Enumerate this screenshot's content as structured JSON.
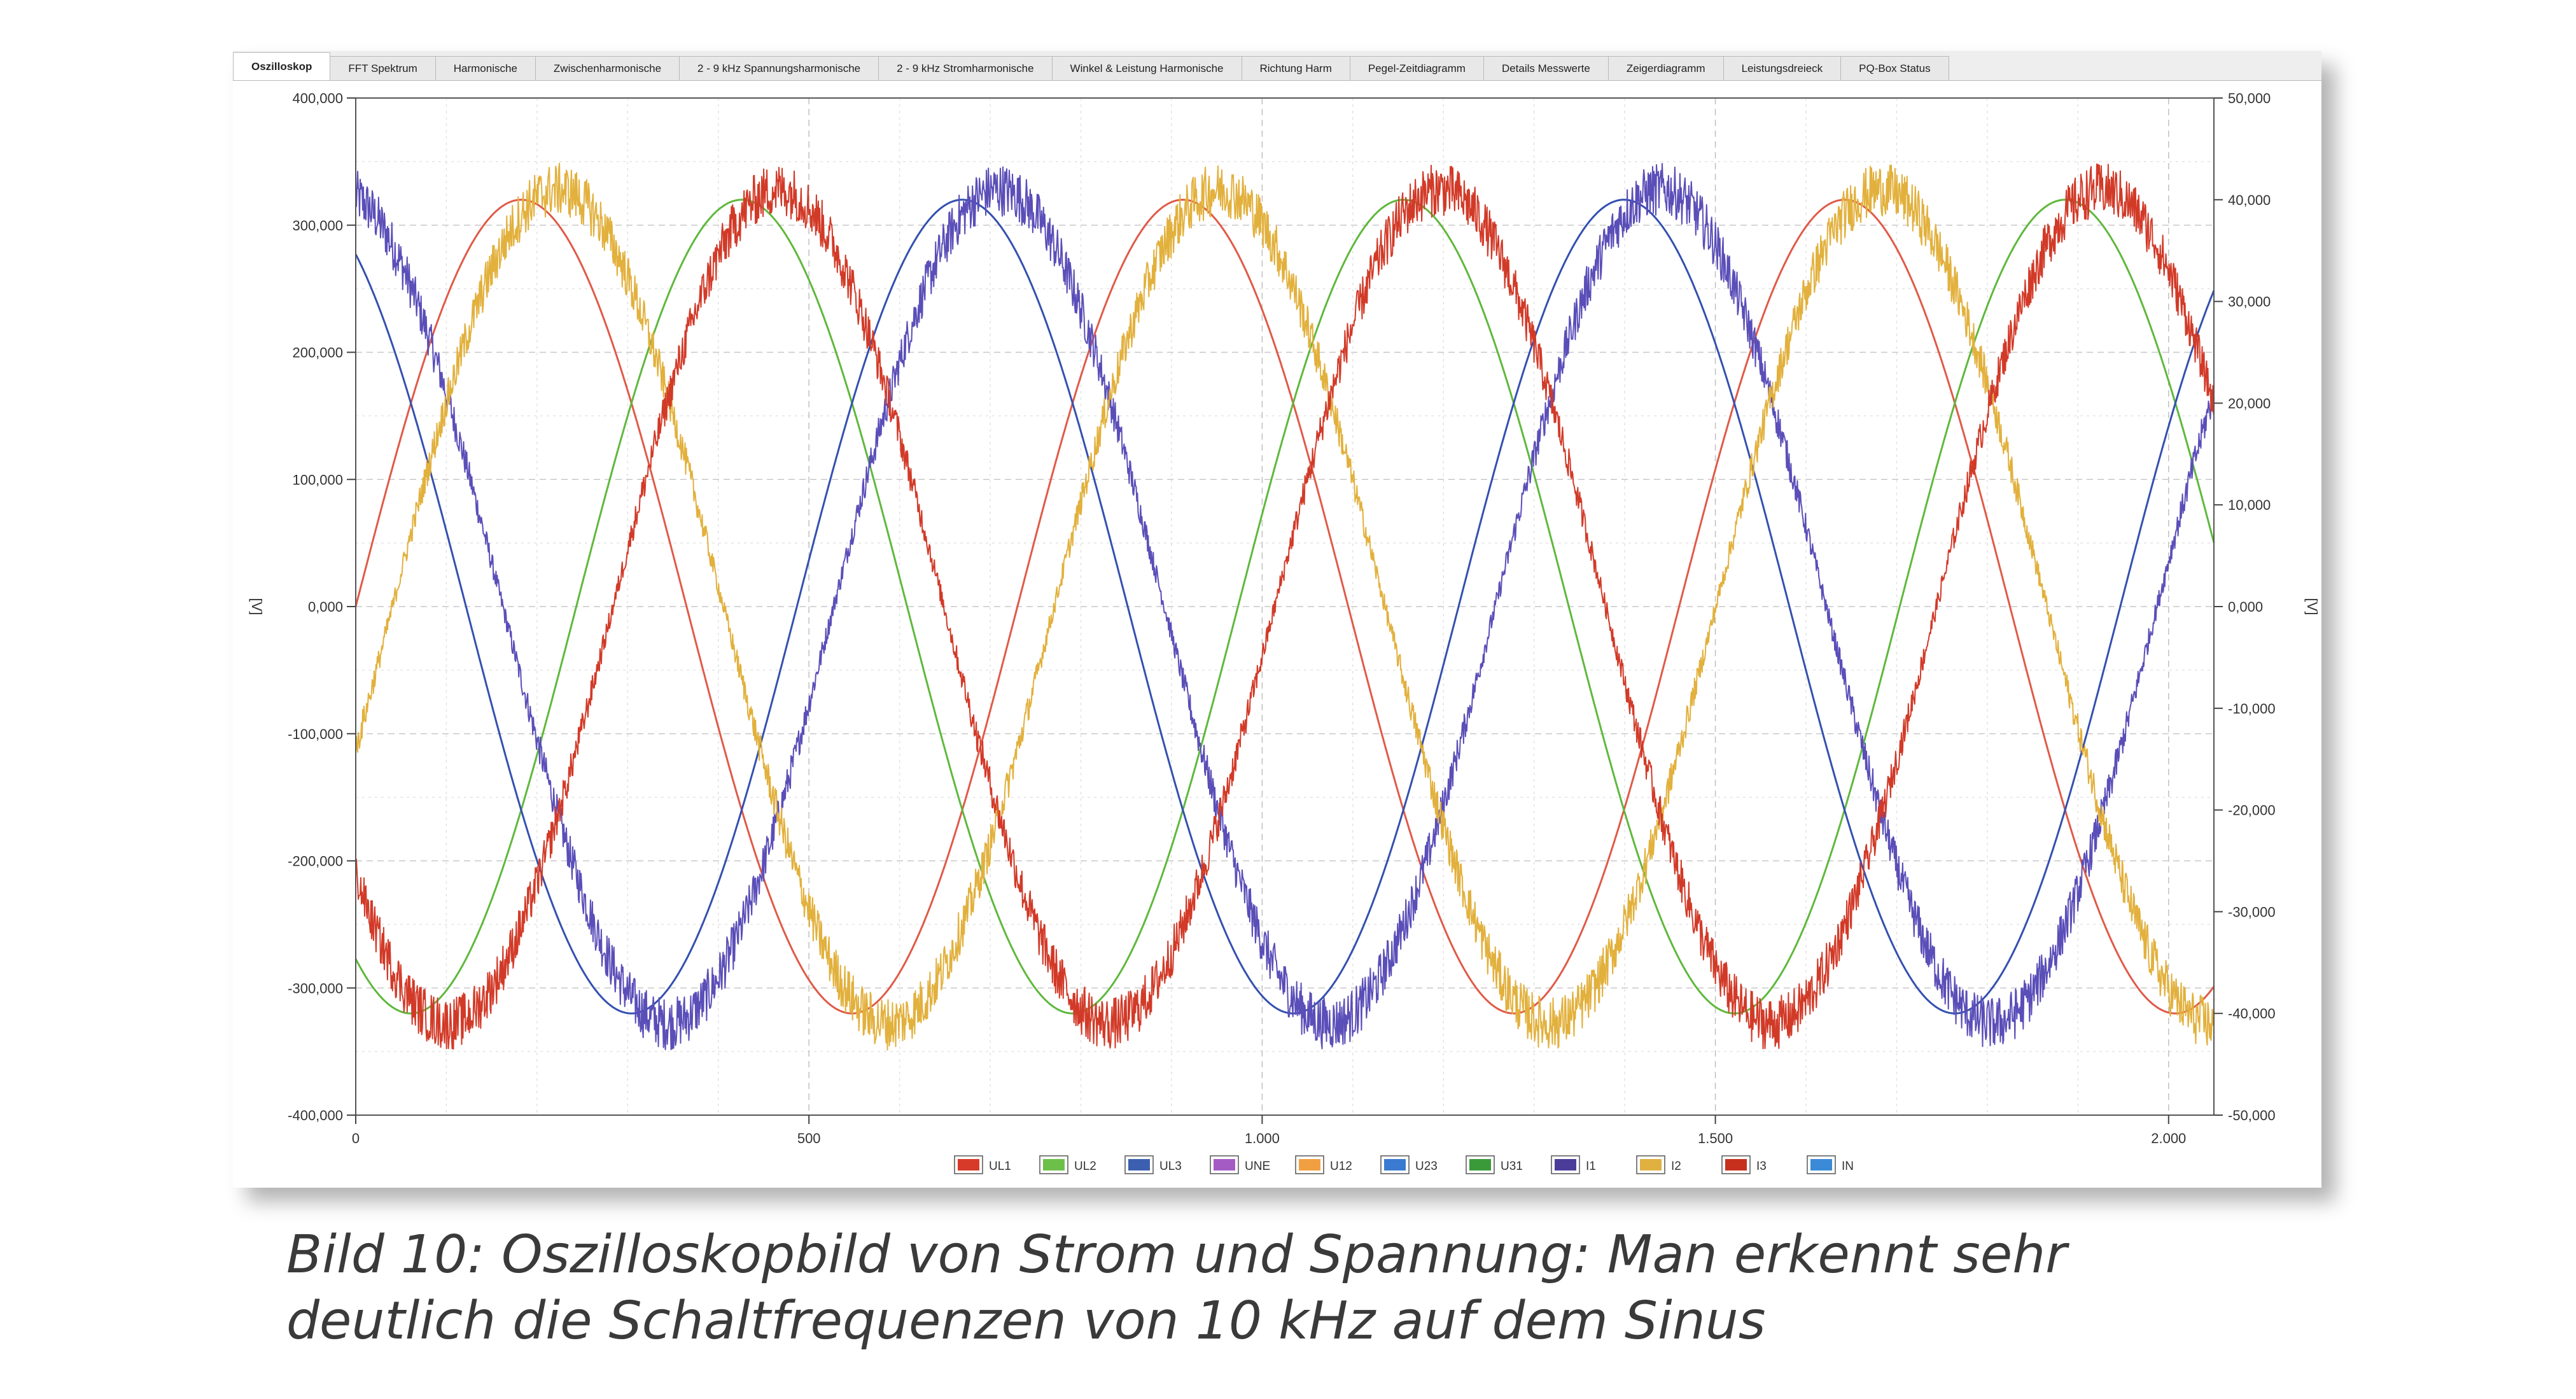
{
  "window": {
    "tabs": [
      {
        "label": "Oszilloskop",
        "active": true
      },
      {
        "label": "FFT Spektrum"
      },
      {
        "label": "Harmonische"
      },
      {
        "label": "Zwischenharmonische"
      },
      {
        "label": "2 - 9 kHz Spannungsharmonische"
      },
      {
        "label": "2 - 9 kHz Stromharmonische"
      },
      {
        "label": "Winkel & Leistung Harmonische"
      },
      {
        "label": "Richtung Harm"
      },
      {
        "label": "Pegel-Zeitdiagramm"
      },
      {
        "label": "Details Messwerte"
      },
      {
        "label": "Zeigerdiagramm"
      },
      {
        "label": "Leistungsdreieck"
      },
      {
        "label": "PQ-Box Status"
      }
    ]
  },
  "chart_data": {
    "type": "line",
    "x_range": [
      0,
      2050
    ],
    "x_ticks": [
      0,
      500,
      1000,
      1500,
      2000
    ],
    "x_tick_labels": [
      "0",
      "500",
      "1.000",
      "1.500",
      "2.000"
    ],
    "y_left_range": [
      -400000,
      400000
    ],
    "y_left_ticks": [
      400000,
      300000,
      200000,
      100000,
      0,
      -100000,
      -200000,
      -300000,
      -400000
    ],
    "y_left_tick_labels": [
      "400,000",
      "300,000",
      "200,000",
      "100,000",
      "0,000",
      "-100,000",
      "-200,000",
      "-300,000",
      "-400,000"
    ],
    "y_left_label": "[V]",
    "y_right_range": [
      -50000,
      50000
    ],
    "y_right_ticks": [
      50000,
      40000,
      30000,
      20000,
      10000,
      0,
      -10000,
      -20000,
      -30000,
      -40000,
      -50000
    ],
    "y_right_tick_labels": [
      "50,000",
      "40,000",
      "30,000",
      "20,000",
      "10,000",
      "0,000",
      "-10,000",
      "-20,000",
      "-30,000",
      "-40,000",
      "-50,000"
    ],
    "y_right_label": "[V]",
    "grid": true,
    "legend_position": "bottom",
    "legend": [
      {
        "name": "UL1",
        "color": "#d83a2a"
      },
      {
        "name": "UL2",
        "color": "#6cc04a"
      },
      {
        "name": "UL3",
        "color": "#3c5fb0"
      },
      {
        "name": "UNE",
        "color": "#a45cc4"
      },
      {
        "name": "U12",
        "color": "#f0a040"
      },
      {
        "name": "U23",
        "color": "#3a7ad0"
      },
      {
        "name": "U31",
        "color": "#3a9a3a"
      },
      {
        "name": "I1",
        "color": "#4b3c9a"
      },
      {
        "name": "I2",
        "color": "#e0b040"
      },
      {
        "name": "I3",
        "color": "#c8301e"
      },
      {
        "name": "IN",
        "color": "#3a8ad8"
      }
    ],
    "series": [
      {
        "name": "UL1",
        "axis": "left",
        "color": "#e05a48",
        "width": 3,
        "amplitude": 320000,
        "period": 730,
        "phase_deg": 0,
        "noise": 0
      },
      {
        "name": "UL2",
        "axis": "left",
        "color": "#5fb83c",
        "width": 3,
        "amplitude": 320000,
        "period": 730,
        "phase_deg": -120,
        "noise": 0
      },
      {
        "name": "UL3",
        "axis": "left",
        "color": "#3450b0",
        "width": 3,
        "amplitude": 320000,
        "period": 730,
        "phase_deg": 120,
        "noise": 0
      },
      {
        "name": "I1",
        "axis": "right",
        "color": "#5a4eb8",
        "width": 2,
        "amplitude": 41000,
        "period": 730,
        "phase_deg": 100,
        "noise": 2600
      },
      {
        "name": "I2",
        "axis": "right",
        "color": "#e2b03c",
        "width": 2,
        "amplitude": 41000,
        "period": 730,
        "phase_deg": -20,
        "noise": 2600
      },
      {
        "name": "I3",
        "axis": "right",
        "color": "#d23a28",
        "width": 2,
        "amplitude": 41000,
        "period": 730,
        "phase_deg": -140,
        "noise": 2600
      }
    ]
  },
  "caption": {
    "line1": "Bild 10: Oszilloskopbild von Strom und Spannung: Man erkennt sehr",
    "line2": "deutlich die Schaltfrequenzen von 10 kHz auf dem Sinus"
  }
}
